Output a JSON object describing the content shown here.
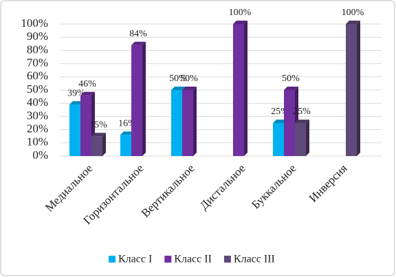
{
  "chart_data": {
    "type": "bar",
    "categories": [
      "Медиальное",
      "Горизонтальное",
      "Вертикальное",
      "Дистальное",
      "Буккальное",
      "Инверсия"
    ],
    "series": [
      {
        "name": "Класс I",
        "color": "#00b0f0",
        "values": [
          39,
          16,
          50,
          null,
          25,
          null
        ],
        "value_labels": [
          "39%",
          "16%",
          "50%",
          null,
          "25%",
          null
        ]
      },
      {
        "name": "Класс II",
        "color": "#7030a0",
        "values": [
          46,
          84,
          50,
          100,
          50,
          null
        ],
        "value_labels": [
          "46%",
          "84%",
          "50%",
          "100%",
          "50%",
          null
        ]
      },
      {
        "name": "Класс III",
        "color": "#604a7b",
        "values": [
          15,
          null,
          null,
          null,
          25,
          100
        ],
        "value_labels": [
          "15%",
          null,
          null,
          null,
          "25%",
          "100%"
        ]
      }
    ],
    "ylim": [
      0,
      100
    ],
    "yticks": [
      {
        "value": 0,
        "label": "0%"
      },
      {
        "value": 10,
        "label": "10%"
      },
      {
        "value": 20,
        "label": "20%"
      },
      {
        "value": 30,
        "label": "30%"
      },
      {
        "value": 40,
        "label": "40%"
      },
      {
        "value": 50,
        "label": "50%"
      },
      {
        "value": 60,
        "label": "60%"
      },
      {
        "value": 70,
        "label": "70%"
      },
      {
        "value": 80,
        "label": "80%"
      },
      {
        "value": 90,
        "label": "90%"
      },
      {
        "value": 100,
        "label": "100%"
      }
    ],
    "grid": true,
    "legend": "bottom"
  }
}
